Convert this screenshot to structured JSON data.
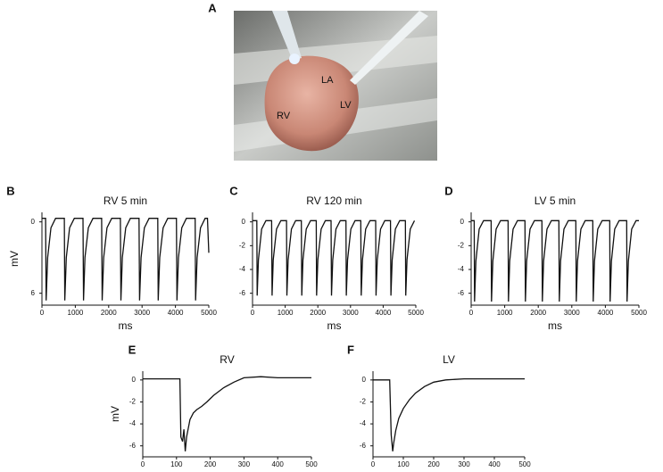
{
  "photo": {
    "panel_label": "A",
    "labels": [
      "LA",
      "LV",
      "RV"
    ]
  },
  "chart_data": [
    {
      "type": "line",
      "panel_label": "B",
      "title": "RV 5 min",
      "xlabel": "ms",
      "ylabel": "mV",
      "color": "#111111",
      "xlim": [
        0,
        5000
      ],
      "xticks": [
        0,
        1000,
        2000,
        3000,
        4000,
        5000
      ],
      "ylim": [
        -7,
        0.8
      ],
      "yticks": [
        0,
        {
          "value": -6,
          "label": "6"
        }
      ],
      "x": [
        0,
        110,
        125,
        170,
        270,
        410,
        670,
        685,
        730,
        830,
        970,
        1230,
        1245,
        1290,
        1390,
        1530,
        1790,
        1805,
        1850,
        1950,
        2090,
        2350,
        2365,
        2410,
        2510,
        2650,
        2910,
        2925,
        2970,
        3070,
        3210,
        3470,
        3485,
        3530,
        3630,
        3770,
        4030,
        4045,
        4090,
        4190,
        4330,
        4590,
        4605,
        4650,
        4750,
        4890,
        4960,
        5000
      ],
      "values": [
        0.3,
        0.3,
        -6.6,
        -3,
        -0.5,
        0.3,
        0.3,
        -6.6,
        -3,
        -0.5,
        0.3,
        0.3,
        -6.6,
        -3,
        -0.5,
        0.3,
        0.3,
        -6.6,
        -3,
        -0.5,
        0.3,
        0.3,
        -6.6,
        -3,
        -0.5,
        0.3,
        0.3,
        -6.6,
        -3,
        -0.5,
        0.3,
        0.3,
        -6.6,
        -3,
        -0.5,
        0.3,
        0.3,
        -6.6,
        -3,
        -0.5,
        0.3,
        0.3,
        -6.6,
        -3,
        -0.5,
        0.3,
        0.3,
        -2.6
      ]
    },
    {
      "type": "line",
      "panel_label": "C",
      "title": "RV 120  min",
      "xlabel": "ms",
      "color": "#111111",
      "xlim": [
        0,
        5000
      ],
      "xticks": [
        0,
        1000,
        2000,
        3000,
        4000,
        5000
      ],
      "ylim": [
        -7,
        0.8
      ],
      "yticks": [
        0,
        -2,
        -4,
        -6
      ],
      "x": [
        0,
        130,
        142,
        180,
        280,
        410,
        585,
        597,
        635,
        735,
        865,
        1040,
        1052,
        1090,
        1190,
        1320,
        1495,
        1507,
        1545,
        1645,
        1775,
        1950,
        1962,
        2000,
        2100,
        2230,
        2405,
        2417,
        2455,
        2555,
        2685,
        2860,
        2872,
        2910,
        3010,
        3140,
        3315,
        3327,
        3365,
        3465,
        3595,
        3770,
        3782,
        3820,
        3920,
        4050,
        4225,
        4237,
        4275,
        4375,
        4505,
        4680,
        4692,
        4730,
        4830,
        4960
      ],
      "values": [
        0.1,
        0.1,
        -6.2,
        -3.2,
        -0.6,
        0.1,
        0.1,
        -6.2,
        -3.2,
        -0.6,
        0.1,
        0.1,
        -6.2,
        -3.2,
        -0.6,
        0.1,
        0.1,
        -6.2,
        -3.2,
        -0.6,
        0.1,
        0.1,
        -6.2,
        -3.2,
        -0.6,
        0.1,
        0.1,
        -6.2,
        -3.2,
        -0.6,
        0.1,
        0.1,
        -6.2,
        -3.2,
        -0.6,
        0.1,
        0.1,
        -6.2,
        -3.2,
        -0.6,
        0.1,
        0.1,
        -6.2,
        -3.2,
        -0.6,
        0.1,
        0.1,
        -6.2,
        -3.2,
        -0.6,
        0.1,
        0.1,
        -6.2,
        -3.2,
        -0.6,
        0.1
      ]
    },
    {
      "type": "line",
      "panel_label": "D",
      "title": "LV 5 min",
      "xlabel": "ms",
      "color": "#111111",
      "xlim": [
        0,
        5000
      ],
      "xticks": [
        0,
        1000,
        2000,
        3000,
        4000,
        5000
      ],
      "ylim": [
        -7,
        0.8
      ],
      "yticks": [
        0,
        -2,
        -4,
        -6
      ],
      "x": [
        0,
        90,
        102,
        140,
        240,
        370,
        595,
        607,
        645,
        745,
        875,
        1100,
        1112,
        1150,
        1250,
        1380,
        1605,
        1617,
        1655,
        1755,
        1885,
        2110,
        2122,
        2160,
        2260,
        2390,
        2615,
        2627,
        2665,
        2765,
        2895,
        3120,
        3132,
        3170,
        3270,
        3400,
        3625,
        3637,
        3675,
        3775,
        3905,
        4130,
        4142,
        4180,
        4280,
        4410,
        4635,
        4647,
        4685,
        4785,
        4915,
        5000
      ],
      "values": [
        0.1,
        0.1,
        -6.7,
        -3.3,
        -0.6,
        0.1,
        0.1,
        -6.7,
        -3.3,
        -0.6,
        0.1,
        0.1,
        -6.7,
        -3.3,
        -0.6,
        0.1,
        0.1,
        -6.7,
        -3.3,
        -0.6,
        0.1,
        0.1,
        -6.7,
        -3.3,
        -0.6,
        0.1,
        0.1,
        -6.7,
        -3.3,
        -0.6,
        0.1,
        0.1,
        -6.7,
        -3.3,
        -0.6,
        0.1,
        0.1,
        -6.7,
        -3.3,
        -0.6,
        0.1,
        0.1,
        -6.7,
        -3.3,
        -0.6,
        0.1,
        0.1,
        -6.7,
        -3.3,
        -0.6,
        0.1,
        0.1
      ]
    },
    {
      "type": "line",
      "panel_label": "E",
      "title": "RV",
      "ylabel": "mV",
      "color": "#111111",
      "xlim": [
        0,
        500
      ],
      "xticks": [
        0,
        100,
        200,
        300,
        400,
        500
      ],
      "ylim": [
        -7,
        0.8
      ],
      "yticks": [
        0,
        -2,
        -4,
        -6
      ],
      "x": [
        0,
        110,
        113,
        118,
        122,
        126,
        130,
        140,
        150,
        160,
        175,
        190,
        210,
        240,
        270,
        300,
        350,
        400,
        500
      ],
      "values": [
        0.1,
        0.1,
        -5.2,
        -5.6,
        -4.5,
        -6.5,
        -5.2,
        -3.6,
        -3,
        -2.7,
        -2.4,
        -2,
        -1.4,
        -0.7,
        -0.2,
        0.2,
        0.3,
        0.2,
        0.2
      ]
    },
    {
      "type": "line",
      "panel_label": "F",
      "title": "LV",
      "color": "#111111",
      "xlim": [
        0,
        500
      ],
      "xticks": [
        0,
        100,
        200,
        300,
        400,
        500
      ],
      "ylim": [
        -7,
        0.8
      ],
      "yticks": [
        0,
        -2,
        -4,
        -6
      ],
      "x": [
        0,
        55,
        60,
        65,
        68,
        75,
        85,
        100,
        120,
        140,
        170,
        200,
        240,
        300,
        400,
        500
      ],
      "values": [
        0,
        0,
        -5,
        -6.5,
        -5.8,
        -4.6,
        -3.5,
        -2.6,
        -1.8,
        -1.2,
        -0.6,
        -0.2,
        0,
        0.1,
        0.1,
        0.1
      ]
    }
  ]
}
